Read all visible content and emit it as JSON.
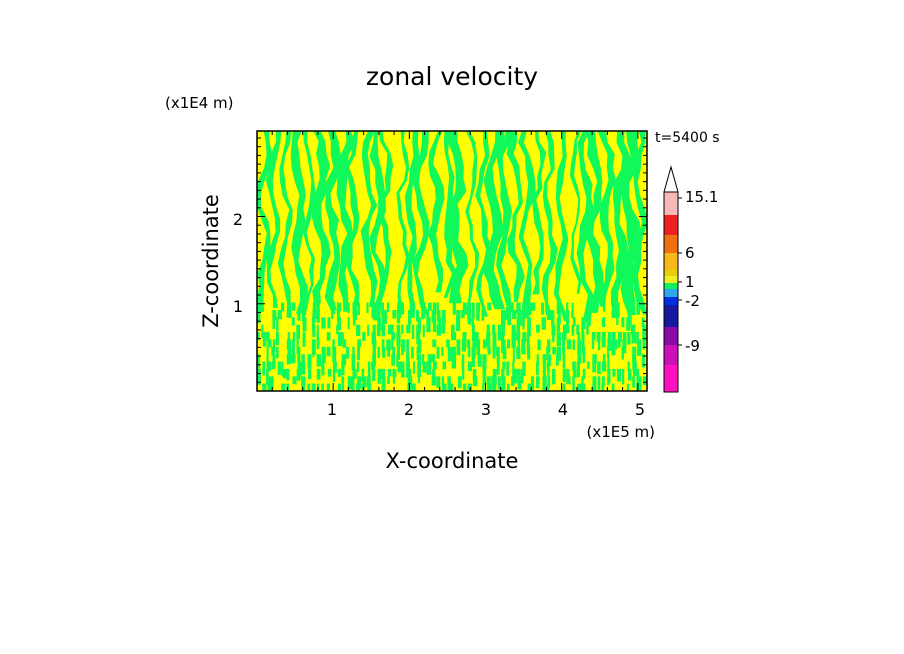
{
  "chart_data": {
    "type": "heatmap",
    "title": "zonal velocity",
    "xlabel": "X-coordinate",
    "ylabel": "Z-coordinate",
    "x_unit": "(x1E5 m)",
    "y_unit": "(x1E4 m)",
    "time_label": "t=5400 s",
    "xlim": [
      0,
      5.12
    ],
    "ylim": [
      0,
      2.98
    ],
    "x_ticks": [
      "1",
      "2",
      "3",
      "4",
      "5"
    ],
    "y_ticks": [
      "1",
      "2"
    ],
    "grid": false,
    "legend_placement": "right",
    "colorbar": {
      "labels": [
        "15.1",
        "6",
        "1",
        "-2",
        "-9"
      ],
      "colors": [
        "#ffffff",
        "#f7b8b8",
        "#ee2020",
        "#f07010",
        "#f8b818",
        "#e8d008",
        "#f0f020",
        "#10f060",
        "#30a8f0",
        "#0030e0",
        "#1818a0",
        "#8a0aa8",
        "#cc10b8",
        "#ff10c0"
      ]
    },
    "field_colors": {
      "yellow": "#ffff00",
      "green": "#10f85a"
    }
  }
}
